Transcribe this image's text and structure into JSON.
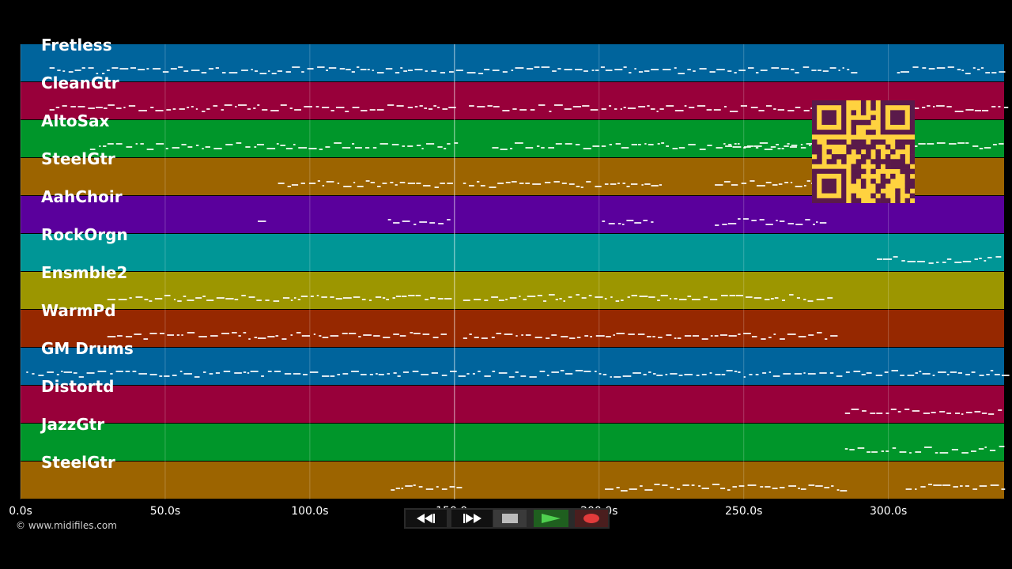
{
  "app": {
    "copyright": "© www.midifiles.com"
  },
  "tracks": [
    {
      "name": "Fretless",
      "color": "#00649c"
    },
    {
      "name": "CleanGtr",
      "color": "#98003a"
    },
    {
      "name": "AltoSax",
      "color": "#00962a"
    },
    {
      "name": "SteelGtr",
      "color": "#9c6400"
    },
    {
      "name": "AahChoir",
      "color": "#5a009c"
    },
    {
      "name": "RockOrgn",
      "color": "#009696"
    },
    {
      "name": "Ensmble2",
      "color": "#9c9600"
    },
    {
      "name": "WarmPd",
      "color": "#962800"
    },
    {
      "name": "GM Drums",
      "color": "#00649c"
    },
    {
      "name": "Distortd",
      "color": "#98003a"
    },
    {
      "name": "JazzGtr",
      "color": "#00962a"
    },
    {
      "name": "SteelGtr",
      "color": "#9c6400"
    }
  ],
  "timeline": {
    "ticks": [
      "0.0s",
      "50.0s",
      "100.0s",
      "150.0s",
      "200.0s",
      "250.0s",
      "300.0s"
    ],
    "tick_values": [
      0,
      50,
      100,
      150,
      200,
      250,
      300
    ],
    "range": [
      0,
      340
    ],
    "playhead": 150
  },
  "transport": {
    "rewind_icon": "rewind-icon",
    "forward_icon": "fast-forward-icon",
    "stop_icon": "stop-icon",
    "play_icon": "play-icon",
    "record_icon": "record-icon"
  },
  "qr_code": "qr-code-icon"
}
